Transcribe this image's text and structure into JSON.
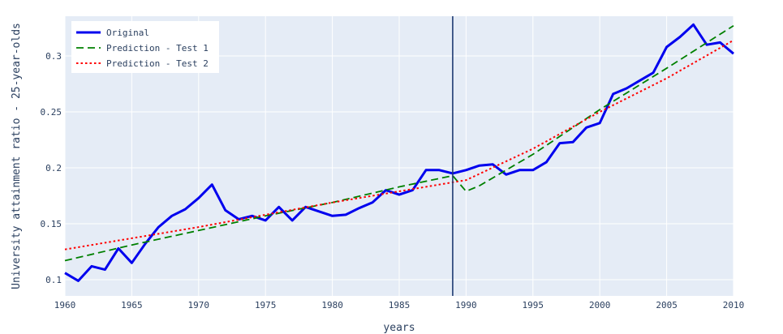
{
  "chart_data": {
    "type": "line",
    "xlabel": "years",
    "ylabel": "University attainment ratio - 25-year-olds",
    "xlim": [
      1960,
      2010
    ],
    "ylim": [
      0.0855,
      0.3355
    ],
    "x_ticks": [
      1960,
      1965,
      1970,
      1975,
      1980,
      1985,
      1990,
      1995,
      2000,
      2005,
      2010
    ],
    "x_tick_labels": [
      "1960",
      "1965",
      "1970",
      "1975",
      "1980",
      "1985",
      "1990",
      "1995",
      "2000",
      "2005",
      "2010"
    ],
    "y_ticks": [
      0.1,
      0.15,
      0.2,
      0.25,
      0.3
    ],
    "y_tick_labels": [
      "0.1",
      "0.15",
      "0.2",
      "0.25",
      "0.3"
    ],
    "grid": true,
    "legend_position": "top-left",
    "vertical_line_x": 1989,
    "colors": {
      "plot_bg": "#e5ecf6",
      "grid": "#ffffff",
      "vline": "#1f3a73",
      "text": "#2a3f5f"
    },
    "series": [
      {
        "name": "Original",
        "color": "#0000ee",
        "style": "solid",
        "x": [
          1960,
          1961,
          1962,
          1963,
          1964,
          1965,
          1966,
          1967,
          1968,
          1969,
          1970,
          1971,
          1972,
          1973,
          1974,
          1975,
          1976,
          1977,
          1978,
          1979,
          1980,
          1981,
          1982,
          1983,
          1984,
          1985,
          1986,
          1987,
          1988,
          1989,
          1990,
          1991,
          1992,
          1993,
          1994,
          1995,
          1996,
          1997,
          1998,
          1999,
          2000,
          2001,
          2002,
          2003,
          2004,
          2005,
          2006,
          2007,
          2008,
          2009,
          2010
        ],
        "y": [
          0.106,
          0.099,
          0.112,
          0.109,
          0.128,
          0.115,
          0.132,
          0.147,
          0.157,
          0.163,
          0.173,
          0.185,
          0.162,
          0.154,
          0.157,
          0.153,
          0.165,
          0.153,
          0.165,
          0.161,
          0.157,
          0.158,
          0.164,
          0.169,
          0.18,
          0.176,
          0.18,
          0.198,
          0.198,
          0.195,
          0.198,
          0.202,
          0.203,
          0.194,
          0.198,
          0.198,
          0.205,
          0.222,
          0.223,
          0.236,
          0.24,
          0.266,
          0.271,
          0.278,
          0.285,
          0.308,
          0.317,
          0.328,
          0.31,
          0.312,
          0.302
        ]
      },
      {
        "name": "Prediction - Test 1",
        "color": "#008000",
        "style": "dashed",
        "x": [
          1960,
          1965,
          1970,
          1975,
          1980,
          1985,
          1989,
          1990,
          1991,
          1995,
          2000,
          2005,
          2010
        ],
        "y": [
          0.117,
          0.131,
          0.144,
          0.157,
          0.169,
          0.183,
          0.193,
          0.179,
          0.184,
          0.212,
          0.252,
          0.289,
          0.327
        ]
      },
      {
        "name": "Prediction - Test 2",
        "color": "#ff0000",
        "style": "dotted",
        "x": [
          1960,
          1965,
          1970,
          1975,
          1980,
          1985,
          1989,
          1990,
          1995,
          2000,
          2005,
          2010
        ],
        "y": [
          0.127,
          0.137,
          0.147,
          0.158,
          0.169,
          0.179,
          0.187,
          0.189,
          0.217,
          0.25,
          0.28,
          0.314
        ]
      }
    ]
  }
}
